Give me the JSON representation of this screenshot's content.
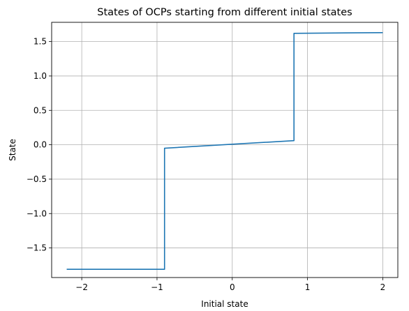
{
  "chart_data": {
    "type": "line",
    "title": "States of OCPs starting from different initial states",
    "xlabel": "Initial state",
    "ylabel": "State",
    "xlim": [
      -2.4,
      2.2
    ],
    "ylim": [
      -1.93,
      1.78
    ],
    "xticks": [
      -2,
      -1,
      0,
      1,
      2
    ],
    "xtick_labels": [
      "−2",
      "−1",
      "0",
      "1",
      "2"
    ],
    "yticks": [
      -1.5,
      -1.0,
      -0.5,
      0.0,
      0.5,
      1.0,
      1.5
    ],
    "ytick_labels": [
      "−1.5",
      "−1.0",
      "−0.5",
      "0.0",
      "0.5",
      "1.0",
      "1.5"
    ],
    "grid": true,
    "series": [
      {
        "color": "#1f77b4",
        "x": [
          -2.2,
          -0.9,
          -0.9,
          0.82,
          0.82,
          2.0
        ],
        "y": [
          -1.81,
          -1.81,
          -0.05,
          0.06,
          1.62,
          1.63
        ]
      }
    ]
  }
}
